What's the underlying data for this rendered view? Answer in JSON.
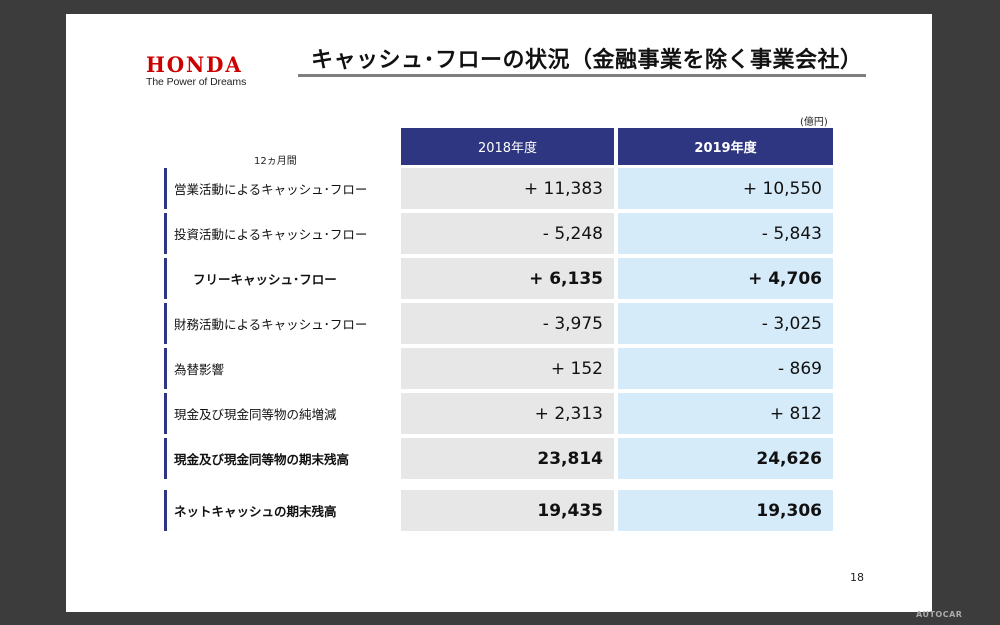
{
  "logo": {
    "word": "HONDA",
    "tagline": "The Power of Dreams"
  },
  "title": "キャッシュ･フローの状況（金融事業を除く事業会社）",
  "unit": "(億円)",
  "period": "12ヵ月間",
  "columns": [
    "2018年度",
    "2019年度"
  ],
  "rows": [
    {
      "label": "営業活動によるキャッシュ･フロー",
      "v2018": "+ 11,383",
      "v2019": "+ 10,550"
    },
    {
      "label": "投資活動によるキャッシュ･フロー",
      "v2018": "- 5,248",
      "v2019": "- 5,843"
    },
    {
      "label": "フリーキャッシュ･フロー",
      "v2018": "+ 6,135",
      "v2019": "+ 4,706"
    },
    {
      "label": "財務活動によるキャッシュ･フロー",
      "v2018": "- 3,975",
      "v2019": "- 3,025"
    },
    {
      "label": "為替影響",
      "v2018": "+ 152",
      "v2019": "- 869"
    },
    {
      "label": "現金及び現金同等物の純増減",
      "v2018": "+ 2,313",
      "v2019": "+ 812"
    },
    {
      "label": "現金及び現金同等物の期末残高",
      "v2018": "23,814",
      "v2019": "24,626"
    },
    {
      "label": "ネットキャッシュの期末残高",
      "v2018": "19,435",
      "v2019": "19,306"
    }
  ],
  "page_number": "18",
  "watermark": "AUTOCAR"
}
